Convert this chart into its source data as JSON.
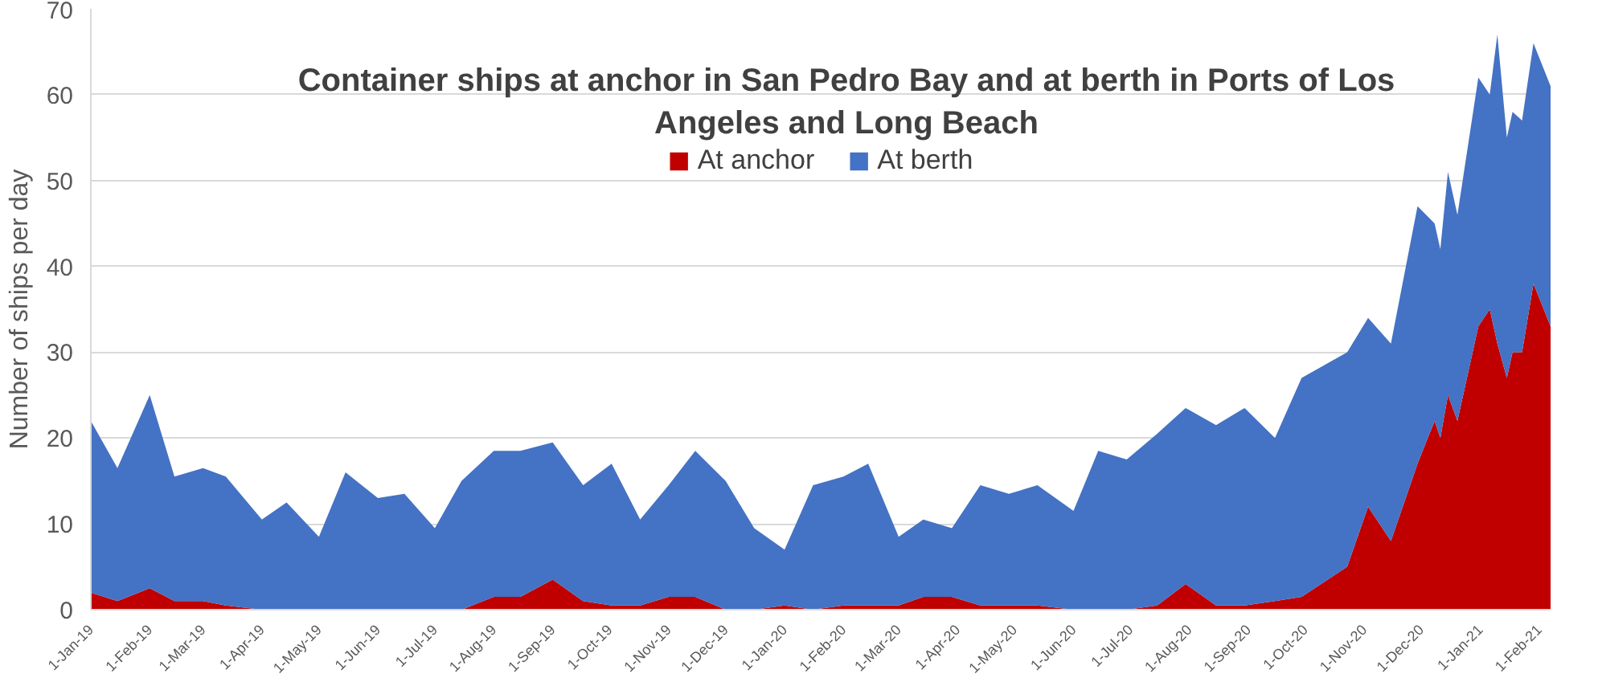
{
  "chart_data": {
    "type": "area",
    "stacked": true,
    "title": "Container ships at anchor in San Pedro Bay and at berth in Ports of Los Angeles and Long Beach",
    "ylabel": "Number of ships per day",
    "x": [
      "2019-01-01",
      "2019-01-15",
      "2019-02-01",
      "2019-02-14",
      "2019-03-01",
      "2019-03-13",
      "2019-04-01",
      "2019-04-14",
      "2019-05-01",
      "2019-05-15",
      "2019-06-01",
      "2019-06-15",
      "2019-07-01",
      "2019-07-15",
      "2019-08-01",
      "2019-08-15",
      "2019-09-01",
      "2019-09-17",
      "2019-10-02",
      "2019-10-17",
      "2019-11-01",
      "2019-11-15",
      "2019-12-01",
      "2019-12-16",
      "2020-01-01",
      "2020-01-16",
      "2020-02-01",
      "2020-02-14",
      "2020-03-01",
      "2020-03-14",
      "2020-03-29",
      "2020-04-13",
      "2020-04-28",
      "2020-05-13",
      "2020-06-01",
      "2020-06-14",
      "2020-06-29",
      "2020-07-15",
      "2020-07-30",
      "2020-08-15",
      "2020-08-30",
      "2020-09-15",
      "2020-09-29",
      "2020-10-23",
      "2020-11-03",
      "2020-11-15",
      "2020-11-29",
      "2020-12-08",
      "2020-12-11",
      "2020-12-15",
      "2020-12-20",
      "2020-12-31",
      "2021-01-06",
      "2021-01-10",
      "2021-01-15",
      "2021-01-18",
      "2021-01-23",
      "2021-01-29",
      "2021-02-07"
    ],
    "series": [
      {
        "name": "At anchor",
        "color": "#c00000",
        "values": [
          2,
          1,
          2.5,
          1,
          1,
          0.5,
          0,
          0,
          0,
          0,
          0,
          0,
          0,
          0,
          1.5,
          1.5,
          3.5,
          1,
          0.5,
          0.5,
          1.5,
          1.5,
          0,
          0,
          0.5,
          0,
          0.5,
          0.5,
          0.5,
          1.5,
          1.5,
          0.5,
          0.5,
          0.5,
          0,
          0,
          0,
          0.5,
          3,
          0.5,
          0.5,
          1,
          1.5,
          5,
          12,
          8,
          17,
          22,
          20,
          25,
          22,
          33,
          35,
          31,
          27,
          30,
          30,
          38,
          33
        ]
      },
      {
        "name": "At berth",
        "color": "#4472c4",
        "values": [
          20,
          15.5,
          22.5,
          14.5,
          15.5,
          15,
          10.5,
          12.5,
          8.5,
          16,
          13,
          13.5,
          9.5,
          15,
          17,
          17,
          16,
          13.5,
          16.5,
          10,
          13,
          17,
          15,
          9.5,
          6.5,
          14.5,
          15,
          16.5,
          8,
          9,
          8,
          14,
          13,
          14,
          11.5,
          18.5,
          17.5,
          20,
          20.5,
          21,
          23,
          19,
          25.5,
          25,
          22,
          23,
          30,
          23,
          22,
          26,
          24,
          29,
          25,
          36,
          28,
          28,
          27,
          28,
          28
        ]
      }
    ],
    "xlim": [
      "2019-01-01",
      "2021-02-07"
    ],
    "xticks": [
      {
        "value": "2019-01-01",
        "label": "1-Jan-19"
      },
      {
        "value": "2019-02-01",
        "label": "1-Feb-19"
      },
      {
        "value": "2019-03-01",
        "label": "1-Mar-19"
      },
      {
        "value": "2019-04-01",
        "label": "1-Apr-19"
      },
      {
        "value": "2019-05-01",
        "label": "1-May-19"
      },
      {
        "value": "2019-06-01",
        "label": "1-Jun-19"
      },
      {
        "value": "2019-07-01",
        "label": "1-Jul-19"
      },
      {
        "value": "2019-08-01",
        "label": "1-Aug-19"
      },
      {
        "value": "2019-09-01",
        "label": "1-Sep-19"
      },
      {
        "value": "2019-10-01",
        "label": "1-Oct-19"
      },
      {
        "value": "2019-11-01",
        "label": "1-Nov-19"
      },
      {
        "value": "2019-12-01",
        "label": "1-Dec-19"
      },
      {
        "value": "2020-01-01",
        "label": "1-Jan-20"
      },
      {
        "value": "2020-02-01",
        "label": "1-Feb-20"
      },
      {
        "value": "2020-03-01",
        "label": "1-Mar-20"
      },
      {
        "value": "2020-04-01",
        "label": "1-Apr-20"
      },
      {
        "value": "2020-05-01",
        "label": "1-May-20"
      },
      {
        "value": "2020-06-01",
        "label": "1-Jun-20"
      },
      {
        "value": "2020-07-01",
        "label": "1-Jul-20"
      },
      {
        "value": "2020-08-01",
        "label": "1-Aug-20"
      },
      {
        "value": "2020-09-01",
        "label": "1-Sep-20"
      },
      {
        "value": "2020-10-01",
        "label": "1-Oct-20"
      },
      {
        "value": "2020-11-01",
        "label": "1-Nov-20"
      },
      {
        "value": "2020-12-01",
        "label": "1-Dec-20"
      },
      {
        "value": "2021-01-01",
        "label": "1-Jan-21"
      },
      {
        "value": "2021-02-01",
        "label": "1-Feb-21"
      }
    ],
    "ylim": [
      0,
      70
    ],
    "yticks": [
      0,
      10,
      20,
      30,
      40,
      50,
      60,
      70
    ],
    "grid": "y",
    "legend": "top"
  }
}
